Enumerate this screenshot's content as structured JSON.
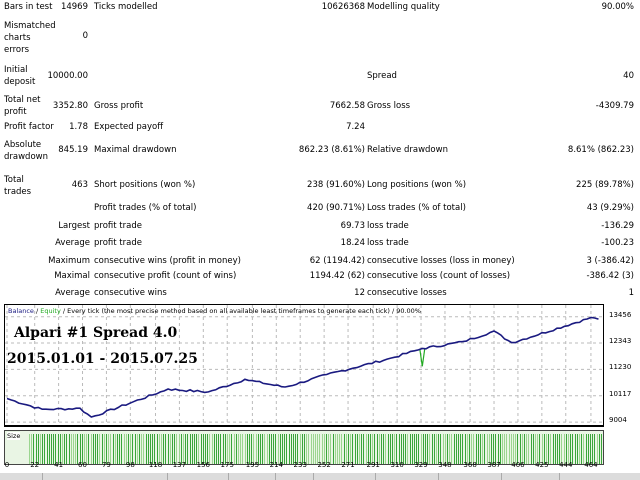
{
  "report": {
    "bars_label": "Bars in test",
    "bars_value": "14969",
    "ticks_label": "Ticks modelled",
    "ticks_value": "10626368",
    "quality_label": "Modelling quality",
    "quality_value": "90.00%",
    "mismatch_label": "Mismatched charts errors",
    "mismatch_value": "0",
    "deposit_label": "Initial deposit",
    "deposit_value": "10000.00",
    "spread_label": "Spread",
    "spread_value": "40",
    "netprofit_label": "Total net profit",
    "netprofit_value": "3352.80",
    "grossprofit_label": "Gross profit",
    "grossprofit_value": "7662.58",
    "grossloss_label": "Gross loss",
    "grossloss_value": "-4309.79",
    "pf_label": "Profit factor",
    "pf_value": "1.78",
    "payoff_label": "Expected payoff",
    "payoff_value": "7.24",
    "absdd_label": "Absolute drawdown",
    "absdd_value": "845.19",
    "maxdd_label": "Maximal drawdown",
    "maxdd_value": "862.23 (8.61%)",
    "reldd_label": "Relative drawdown",
    "reldd_value": "8.61% (862.23)",
    "trades_label": "Total trades",
    "trades_value": "463",
    "short_label": "Short positions (won %)",
    "short_value": "238 (91.60%)",
    "long_label": "Long positions (won %)",
    "long_value": "225 (89.78%)",
    "ptrades_label": "Profit trades (% of total)",
    "ptrades_value": "420 (90.71%)",
    "ltrades_label": "Loss trades (% of total)",
    "ltrades_value": "43 (9.29%)",
    "largest_prefix": "Largest",
    "largest_profit_label": "profit trade",
    "largest_profit_value": "69.73",
    "largest_loss_label": "loss trade",
    "largest_loss_value": "-136.29",
    "average_prefix": "Average",
    "average_profit_label": "profit trade",
    "average_profit_value": "18.24",
    "average_loss_label": "loss trade",
    "average_loss_value": "-100.23",
    "maximum_prefix": "Maximum",
    "maxwins_label": "consecutive wins (profit in money)",
    "maxwins_value": "62 (1194.42)",
    "maxlosses_label": "consecutive losses (loss in money)",
    "maxlosses_value": "3 (-386.42)",
    "maximal_prefix": "Maximal",
    "maxprofit_label": "consecutive profit (count of wins)",
    "maxprofit_value": "1194.42 (62)",
    "maxloss_label": "consecutive loss (count of losses)",
    "maxloss_value": "-386.42 (3)",
    "avg2_prefix": "Average",
    "avgwins_label": "consecutive wins",
    "avgwins_value": "12",
    "avglosses_label": "consecutive losses",
    "avglosses_value": "1"
  },
  "chart_header": {
    "balance": "Balance",
    "sep1": " / ",
    "equity": "Equity",
    "rest": " / Every tick (the most precise method based on all available least timeframes to generate each tick) / 90.00%"
  },
  "annotations": {
    "line1": "Alpari #1   Spread 4.0",
    "line2": "2015.01.01 - 2015.07.25"
  },
  "size_label": "Size",
  "colors": {
    "balance": "#1a1a80",
    "equity": "#22aa22",
    "volume": "#3aa53a"
  },
  "chart_data": {
    "type": "line",
    "ylim": [
      8880,
      13950
    ],
    "xlim": [
      0,
      472
    ],
    "yticks": [
      "13456",
      "12343",
      "11230",
      "10117",
      "9004"
    ],
    "xticks": [
      "0",
      "22",
      "41",
      "60",
      "79",
      "98",
      "118",
      "137",
      "156",
      "175",
      "195",
      "214",
      "233",
      "252",
      "271",
      "291",
      "310",
      "329",
      "348",
      "368",
      "387",
      "406",
      "425",
      "444",
      "464"
    ],
    "series": [
      {
        "name": "Balance",
        "x": [
          0,
          28,
          58,
          67,
          128,
          160,
          189,
          221,
          254,
          305,
          330,
          362,
          387,
          401,
          464,
          470
        ],
        "y": [
          10000,
          9546,
          9588,
          9220,
          10403,
          10280,
          10810,
          10484,
          11014,
          11708,
          12116,
          12402,
          12850,
          12360,
          13421,
          13353
        ]
      },
      {
        "name": "Equity",
        "x": [
          328,
          330,
          332
        ],
        "y": [
          12100,
          11361,
          12120
        ]
      }
    ]
  }
}
